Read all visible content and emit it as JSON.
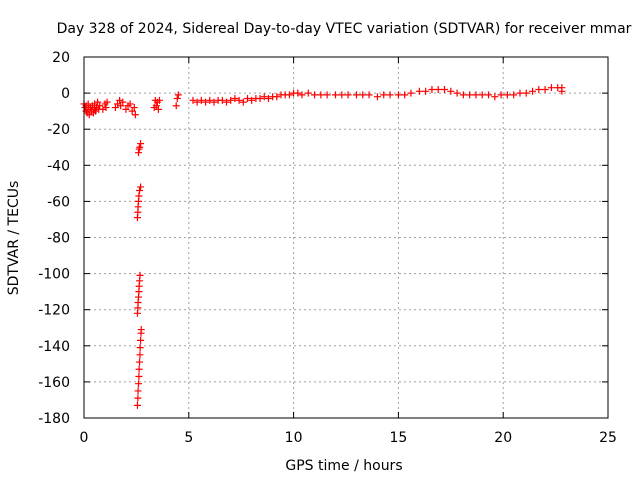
{
  "chart_data": {
    "type": "scatter",
    "title": "Day 328 of 2024, Sidereal Day-to-day VTEC variation (SDTVAR) for receiver mmar",
    "xlabel": "GPS time / hours",
    "ylabel": "SDTVAR / TECUs",
    "xlim": [
      0,
      25
    ],
    "ylim": [
      -180,
      20
    ],
    "xticks": [
      0,
      5,
      10,
      15,
      20,
      25
    ],
    "yticks": [
      20,
      0,
      -20,
      -40,
      -60,
      -80,
      -100,
      -120,
      -140,
      -160,
      -180
    ],
    "grid": true,
    "marker": "+",
    "color": "#ff0000",
    "series": [
      {
        "name": "SDTVAR",
        "points": [
          [
            0.0,
            -6
          ],
          [
            0.05,
            -8
          ],
          [
            0.1,
            -10
          ],
          [
            0.1,
            -7
          ],
          [
            0.15,
            -11
          ],
          [
            0.2,
            -6
          ],
          [
            0.2,
            -9
          ],
          [
            0.25,
            -12
          ],
          [
            0.3,
            -8
          ],
          [
            0.35,
            -10
          ],
          [
            0.4,
            -7
          ],
          [
            0.45,
            -11
          ],
          [
            0.5,
            -6
          ],
          [
            0.5,
            -9
          ],
          [
            0.55,
            -10
          ],
          [
            0.6,
            -8
          ],
          [
            0.65,
            -5
          ],
          [
            0.7,
            -9
          ],
          [
            0.75,
            -7
          ],
          [
            0.9,
            -9
          ],
          [
            1.0,
            -6
          ],
          [
            1.05,
            -8
          ],
          [
            1.1,
            -5
          ],
          [
            1.5,
            -8
          ],
          [
            1.6,
            -6
          ],
          [
            1.7,
            -4
          ],
          [
            1.75,
            -7
          ],
          [
            1.85,
            -5
          ],
          [
            2.0,
            -9
          ],
          [
            2.1,
            -7
          ],
          [
            2.2,
            -6
          ],
          [
            2.3,
            -10
          ],
          [
            2.4,
            -8
          ],
          [
            2.45,
            -12
          ],
          [
            2.55,
            -173
          ],
          [
            2.57,
            -169
          ],
          [
            2.58,
            -165
          ],
          [
            2.6,
            -161
          ],
          [
            2.62,
            -157
          ],
          [
            2.63,
            -153
          ],
          [
            2.65,
            -149
          ],
          [
            2.67,
            -145
          ],
          [
            2.68,
            -141
          ],
          [
            2.7,
            -137
          ],
          [
            2.72,
            -133
          ],
          [
            2.73,
            -131
          ],
          [
            2.55,
            -122
          ],
          [
            2.57,
            -119
          ],
          [
            2.58,
            -116
          ],
          [
            2.6,
            -113
          ],
          [
            2.62,
            -110
          ],
          [
            2.63,
            -107
          ],
          [
            2.65,
            -104
          ],
          [
            2.67,
            -101
          ],
          [
            2.55,
            -69
          ],
          [
            2.57,
            -66
          ],
          [
            2.58,
            -63
          ],
          [
            2.6,
            -60
          ],
          [
            2.62,
            -57
          ],
          [
            2.65,
            -54
          ],
          [
            2.7,
            -52
          ],
          [
            2.6,
            -33
          ],
          [
            2.63,
            -31
          ],
          [
            2.66,
            -30
          ],
          [
            2.7,
            -28
          ],
          [
            3.35,
            -8
          ],
          [
            3.4,
            -4
          ],
          [
            3.45,
            -7
          ],
          [
            3.5,
            -5
          ],
          [
            3.55,
            -9
          ],
          [
            3.6,
            -4
          ],
          [
            4.4,
            -7
          ],
          [
            4.45,
            -3
          ],
          [
            4.5,
            -1
          ],
          [
            5.2,
            -4
          ],
          [
            5.4,
            -5
          ],
          [
            5.6,
            -4
          ],
          [
            5.8,
            -5
          ],
          [
            6.0,
            -4
          ],
          [
            6.2,
            -5
          ],
          [
            6.4,
            -4
          ],
          [
            6.6,
            -4
          ],
          [
            6.8,
            -5
          ],
          [
            7.0,
            -4
          ],
          [
            7.2,
            -3
          ],
          [
            7.4,
            -4
          ],
          [
            7.6,
            -5
          ],
          [
            7.8,
            -3
          ],
          [
            8.0,
            -4
          ],
          [
            8.2,
            -3
          ],
          [
            8.4,
            -3
          ],
          [
            8.6,
            -2
          ],
          [
            8.8,
            -3
          ],
          [
            9.0,
            -2
          ],
          [
            9.2,
            -2
          ],
          [
            9.4,
            -1
          ],
          [
            9.6,
            -1
          ],
          [
            9.8,
            -1
          ],
          [
            10.0,
            0
          ],
          [
            10.2,
            0
          ],
          [
            10.4,
            -1
          ],
          [
            10.7,
            0
          ],
          [
            11.0,
            -1
          ],
          [
            11.3,
            -1
          ],
          [
            11.6,
            -1
          ],
          [
            12.0,
            -1
          ],
          [
            12.3,
            -1
          ],
          [
            12.6,
            -1
          ],
          [
            13.0,
            -1
          ],
          [
            13.3,
            -1
          ],
          [
            13.6,
            -1
          ],
          [
            14.0,
            -2
          ],
          [
            14.3,
            -1
          ],
          [
            14.6,
            -1
          ],
          [
            15.0,
            -1
          ],
          [
            15.3,
            -1
          ],
          [
            15.6,
            0
          ],
          [
            16.0,
            1
          ],
          [
            16.3,
            1
          ],
          [
            16.6,
            2
          ],
          [
            16.9,
            2
          ],
          [
            17.2,
            2
          ],
          [
            17.5,
            1
          ],
          [
            17.8,
            0
          ],
          [
            18.1,
            -1
          ],
          [
            18.4,
            -1
          ],
          [
            18.7,
            -1
          ],
          [
            19.0,
            -1
          ],
          [
            19.3,
            -1
          ],
          [
            19.6,
            -2
          ],
          [
            19.9,
            -1
          ],
          [
            20.2,
            -1
          ],
          [
            20.5,
            -1
          ],
          [
            20.8,
            0
          ],
          [
            21.1,
            0
          ],
          [
            21.4,
            1
          ],
          [
            21.7,
            2
          ],
          [
            22.0,
            2
          ],
          [
            22.3,
            3
          ],
          [
            22.6,
            3
          ],
          [
            22.8,
            3
          ],
          [
            22.8,
            1
          ]
        ]
      }
    ]
  }
}
